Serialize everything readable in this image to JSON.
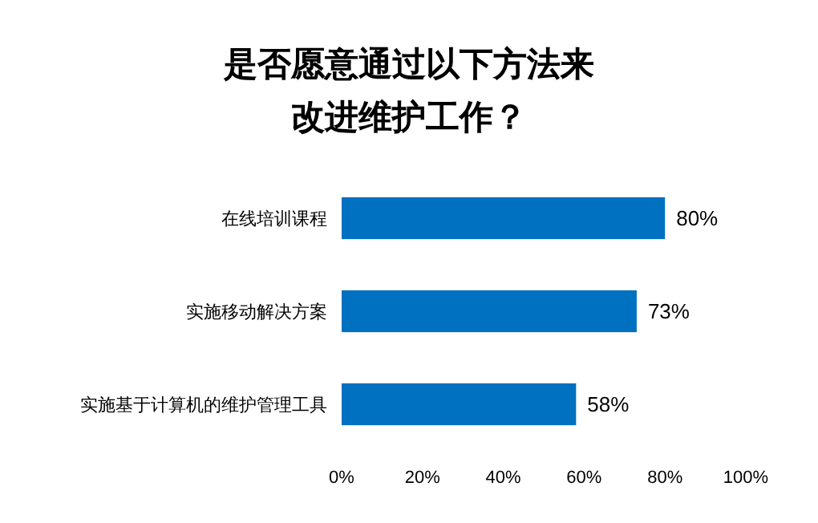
{
  "chart_data": {
    "type": "bar",
    "orientation": "horizontal",
    "title": "是否愿意通过以下方法来改进维护工作？",
    "categories": [
      "在线培训课程",
      "实施移动解决方案",
      "实施基于计算机的维护管理工具"
    ],
    "values": [
      80,
      73,
      58
    ],
    "color": "#0070c0",
    "value_labels": [
      "80%",
      "73%",
      "58%"
    ],
    "xlim": [
      0,
      100
    ],
    "xticks": [
      {
        "value": 0,
        "label": "0%"
      },
      {
        "value": 20,
        "label": "20%"
      },
      {
        "value": 40,
        "label": "40%"
      },
      {
        "value": 60,
        "label": "60%"
      },
      {
        "value": 80,
        "label": "80%"
      },
      {
        "value": 100,
        "label": "100%"
      }
    ],
    "grid": false
  }
}
